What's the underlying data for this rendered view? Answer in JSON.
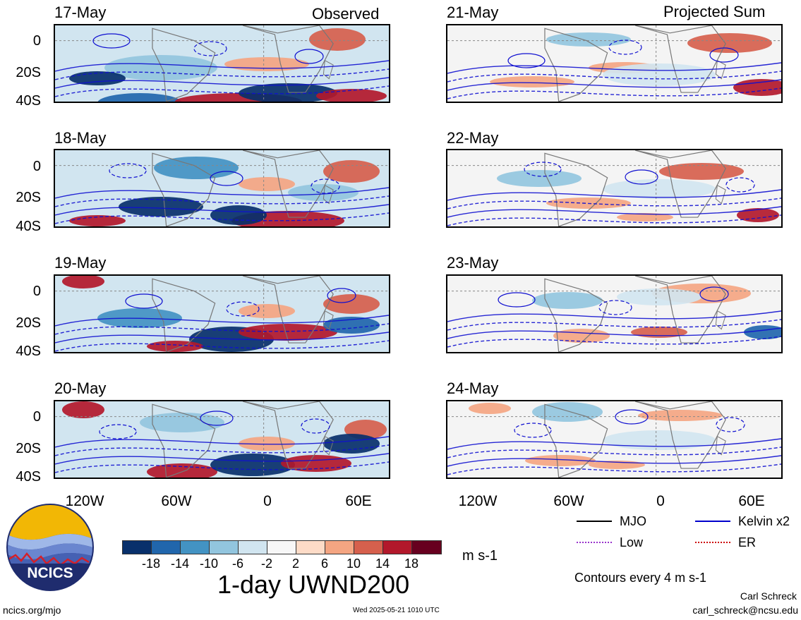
{
  "headers": {
    "left": "Observed",
    "right": "Projected Sum"
  },
  "panels": [
    {
      "date": "17-May",
      "side": "left",
      "row": 0
    },
    {
      "date": "18-May",
      "side": "left",
      "row": 1
    },
    {
      "date": "19-May",
      "side": "left",
      "row": 2
    },
    {
      "date": "20-May",
      "side": "left",
      "row": 3
    },
    {
      "date": "21-May",
      "side": "right",
      "row": 0
    },
    {
      "date": "22-May",
      "side": "right",
      "row": 1
    },
    {
      "date": "23-May",
      "side": "right",
      "row": 2
    },
    {
      "date": "24-May",
      "side": "right",
      "row": 3
    }
  ],
  "y_axis_labels": [
    "0",
    "20S",
    "40S"
  ],
  "x_axis_labels": [
    "120W",
    "60W",
    "0",
    "60E"
  ],
  "legend": {
    "items": [
      {
        "label": "MJO",
        "color": "#000000"
      },
      {
        "label": "Kelvin x2",
        "color": "#0000cc"
      },
      {
        "label": "Low",
        "color": "#9933cc"
      },
      {
        "label": "ER",
        "color": "#cc0000"
      }
    ],
    "contour_note": "Contours every 4 m s-1"
  },
  "colorbar": {
    "ticks": [
      "-18",
      "-14",
      "-10",
      "-6",
      "-2",
      "2",
      "6",
      "10",
      "14",
      "18"
    ],
    "colors": [
      "#08306b",
      "#2166ac",
      "#4393c3",
      "#92c5de",
      "#d1e5f0",
      "#f7f7f7",
      "#fddbc7",
      "#f4a582",
      "#d6604d",
      "#b2182b",
      "#67001f"
    ],
    "unit": "m s-1"
  },
  "title": "1-day UWND200",
  "logo": {
    "text": "NCICS"
  },
  "footer": {
    "url": "ncics.org/mjo",
    "timestamp": "Wed 2025-05-21 1010 UTC",
    "author": "Carl Schreck",
    "email": "carl_schreck@ncsu.edu"
  }
}
